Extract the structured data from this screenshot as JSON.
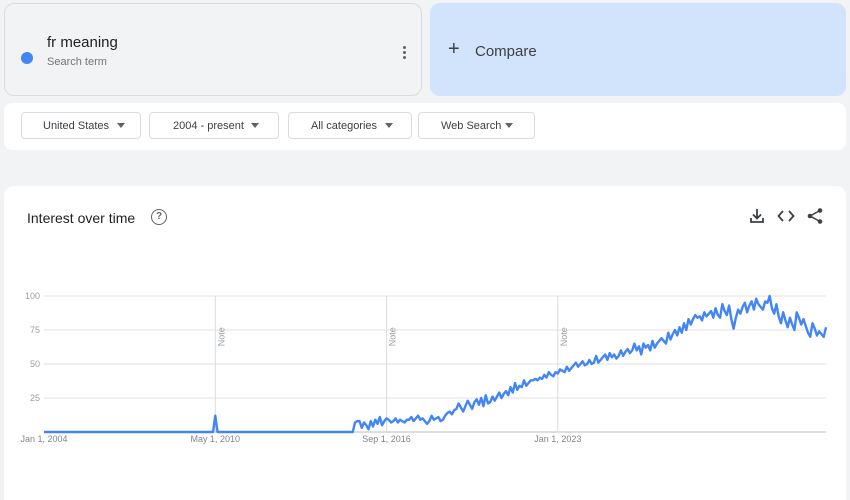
{
  "search_term": {
    "name": "fr meaning",
    "subtitle": "Search term",
    "color": "#4285f4"
  },
  "compare": {
    "label": "Compare",
    "plus": "+"
  },
  "filters": [
    {
      "label": "United States"
    },
    {
      "label": "2004 - present"
    },
    {
      "label": "All categories"
    },
    {
      "label": "Web Search"
    }
  ],
  "panel": {
    "title": "Interest over time",
    "help_glyph": "?",
    "icons": [
      "download-icon",
      "embed-code-icon",
      "share-icon"
    ]
  },
  "chart_data": {
    "type": "line",
    "title": "",
    "xlabel": "",
    "ylabel": "",
    "ylim": [
      0,
      100
    ],
    "y_ticks": [
      25,
      50,
      75,
      100
    ],
    "x_tick_labels": [
      "Jan 1, 2004",
      "May 1, 2010",
      "Sep 1, 2016",
      "Jan 1, 2023"
    ],
    "notes": [
      "Note",
      "Note",
      "Note"
    ],
    "line_color": "#4285f4",
    "series": [
      {
        "x_start": "2004-01",
        "interval": "month",
        "values": [
          0,
          0,
          0,
          0,
          0,
          0,
          0,
          0,
          0,
          0,
          0,
          0,
          0,
          0,
          0,
          0,
          0,
          0,
          0,
          0,
          0,
          0,
          0,
          0,
          0,
          0,
          0,
          0,
          0,
          0,
          0,
          0,
          0,
          0,
          0,
          0,
          0,
          0,
          0,
          0,
          0,
          0,
          0,
          0,
          0,
          0,
          0,
          0,
          0,
          0,
          0,
          0,
          0,
          0,
          0,
          0,
          0,
          0,
          0,
          0,
          0,
          0,
          0,
          0,
          0,
          0,
          0,
          0,
          0,
          0,
          0,
          0,
          0,
          0,
          0,
          0,
          12,
          0,
          0,
          0,
          0,
          0,
          0,
          0,
          0,
          0,
          0,
          0,
          0,
          0,
          0,
          0,
          0,
          0,
          0,
          0,
          0,
          0,
          0,
          0,
          0,
          0,
          0,
          0,
          0,
          0,
          0,
          0,
          0,
          0,
          0,
          0,
          0,
          0,
          0,
          0,
          0,
          0,
          0,
          0,
          0,
          0,
          0,
          0,
          0,
          0,
          0,
          0,
          0,
          0,
          0,
          0,
          0,
          0,
          0,
          0,
          0,
          0,
          7,
          8,
          8,
          3,
          7,
          5,
          2,
          8,
          4,
          9,
          6,
          11,
          5,
          8,
          10,
          9,
          7,
          8,
          10,
          7,
          9,
          8,
          7,
          9,
          9,
          11,
          8,
          10,
          12,
          9,
          10,
          8,
          6,
          8,
          12,
          9,
          10,
          11,
          8,
          9,
          12,
          14,
          15,
          13,
          16,
          17,
          21,
          18,
          15,
          19,
          23,
          20,
          17,
          22,
          24,
          20,
          25,
          19,
          27,
          21,
          22,
          26,
          23,
          26,
          29,
          25,
          28,
          30,
          27,
          33,
          29,
          36,
          31,
          34,
          33,
          38,
          34,
          36,
          38,
          38,
          39,
          38,
          40,
          39,
          42,
          40,
          44,
          42,
          41,
          44,
          43,
          46,
          45,
          44,
          48,
          45,
          47,
          49,
          51,
          48,
          50,
          52,
          49,
          50,
          53,
          50,
          51,
          56,
          51,
          53,
          55,
          57,
          53,
          58,
          55,
          57,
          54,
          56,
          60,
          56,
          59,
          61,
          58,
          60,
          65,
          60,
          63,
          57,
          65,
          62,
          64,
          60,
          67,
          62,
          65,
          67,
          69,
          67,
          65,
          73,
          68,
          72,
          75,
          71,
          77,
          73,
          80,
          75,
          83,
          79,
          83,
          86,
          84,
          85,
          82,
          88,
          85,
          87,
          89,
          84,
          91,
          86,
          84,
          94,
          89,
          86,
          93,
          83,
          76,
          84,
          90,
          87,
          92,
          95,
          88,
          93,
          96,
          90,
          98,
          94,
          92,
          90,
          96,
          95,
          100,
          91,
          87,
          94,
          85,
          80,
          88,
          82,
          77,
          84,
          79,
          75,
          88,
          84,
          79,
          83,
          78,
          73,
          70,
          80,
          76,
          71,
          74,
          72,
          70,
          77
        ]
      }
    ]
  }
}
